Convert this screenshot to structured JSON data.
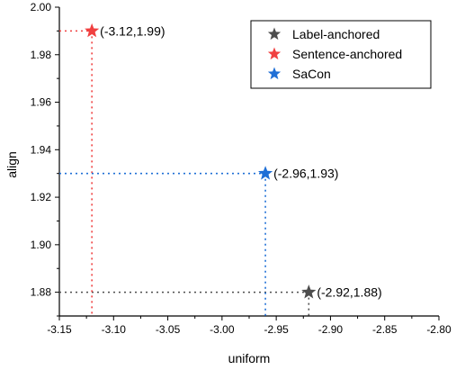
{
  "chart_data": {
    "type": "scatter",
    "xlabel": "uniform",
    "ylabel": "align",
    "xlim": [
      -3.15,
      -2.8
    ],
    "ylim": [
      1.87,
      2.0
    ],
    "x_ticks": [
      "-3.15",
      "-3.10",
      "-3.05",
      "-3.00",
      "-2.95",
      "-2.90",
      "-2.85",
      "-2.80"
    ],
    "y_ticks": [
      "1.88",
      "1.90",
      "1.92",
      "1.94",
      "1.96",
      "1.98",
      "2.00"
    ],
    "marker": "star",
    "grid": false,
    "legend_position": "top-right",
    "series": [
      {
        "name": "Label-anchored",
        "color": "#4d4d4d",
        "x": -2.92,
        "y": 1.88,
        "label": "(-2.92,1.88)"
      },
      {
        "name": "Sentence-anchored",
        "color": "#f04040",
        "x": -3.12,
        "y": 1.99,
        "label": "(-3.12,1.99)"
      },
      {
        "name": "SaCon",
        "color": "#1f6fd6",
        "x": -2.96,
        "y": 1.93,
        "label": "(-2.96,1.93)"
      }
    ]
  }
}
